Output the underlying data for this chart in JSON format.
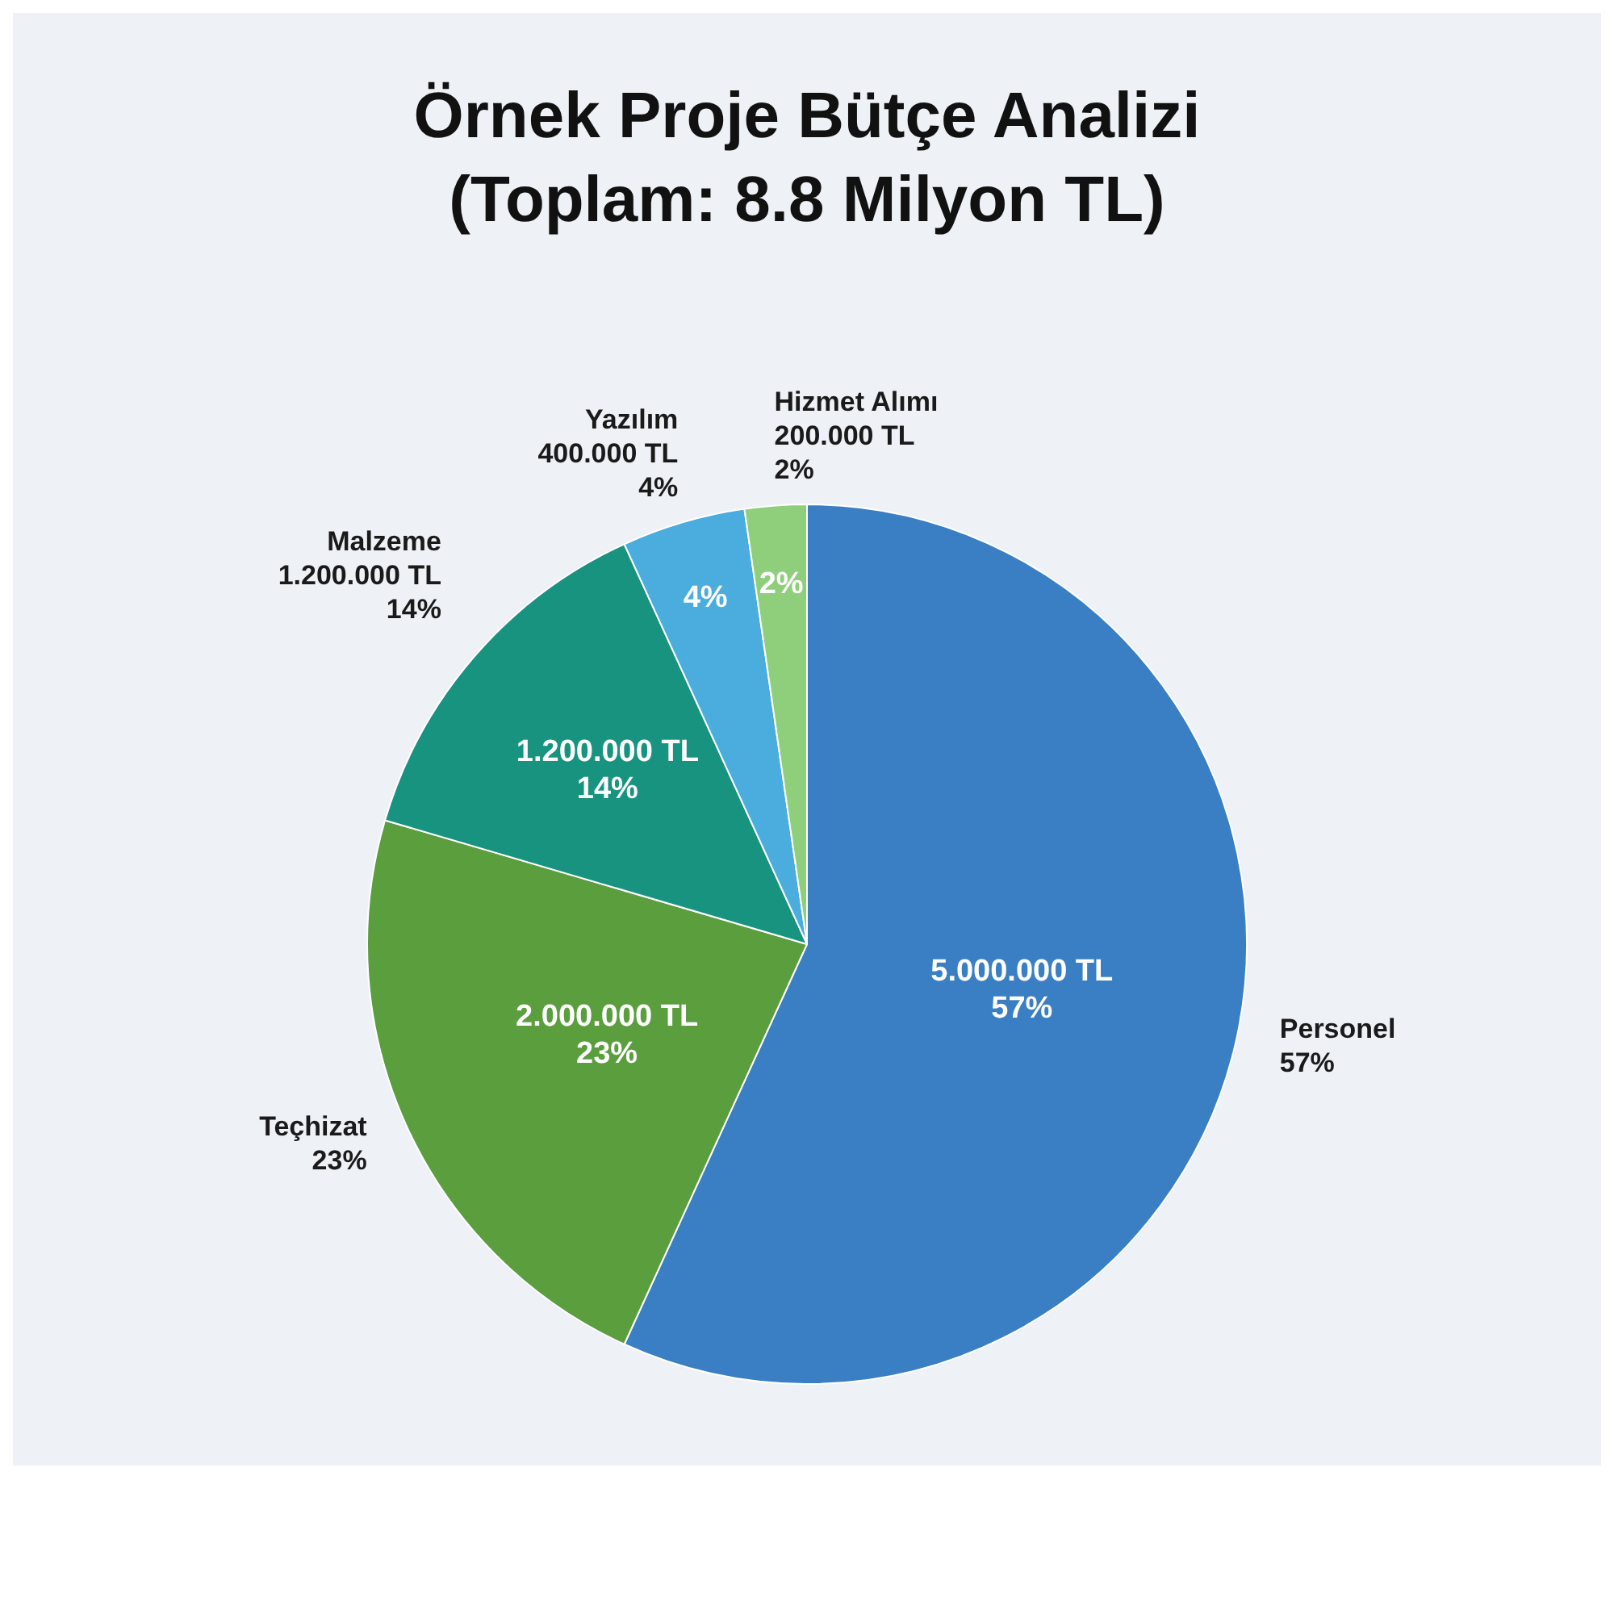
{
  "chart_data": {
    "type": "pie",
    "title": "Örnek Proje Bütçe Analizi\n(Toplam: 8.8 Milyon TL)",
    "categories": [
      "Personel",
      "Teçhizat",
      "Malzeme",
      "Yazılım",
      "Hizmet Alımı"
    ],
    "values": [
      5000000,
      2000000,
      1200000,
      400000,
      200000
    ],
    "colors": [
      "#3a7fc4",
      "#5a9e3e",
      "#17937f",
      "#4badde",
      "#8fcf7c"
    ],
    "value_labels": [
      "5.000.000 TL\n57%",
      "2.000.000 TL\n23%",
      "1.200.000 TL\n14%",
      null,
      null
    ],
    "annotations": [
      {
        "text": "57%",
        "x": "Personel"
      },
      {
        "text": "23%",
        "x": "Teçhizat"
      },
      {
        "text": "1.200.000 TL\n14%",
        "x": "Malzeme"
      },
      {
        "text": "400.000 TL\n4%",
        "x": "Yazılım"
      },
      {
        "text": "4%",
        "x": "Yazılım"
      },
      {
        "text": "200.000 TL\n2%",
        "x": "Hizmet Alımı"
      },
      {
        "text": "2%",
        "x": "Hizmet Alımı"
      }
    ],
    "legend": false
  }
}
